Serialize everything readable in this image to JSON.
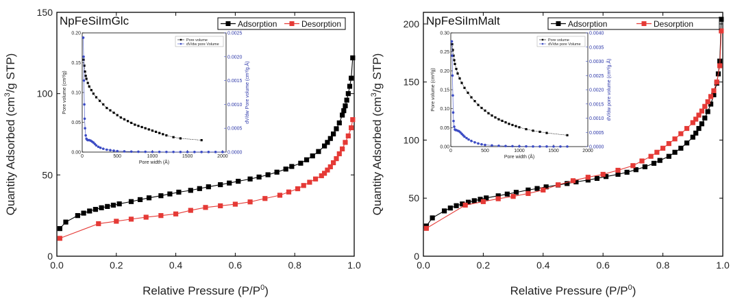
{
  "chart_data": [
    {
      "type": "line",
      "title": "NpFeSiImGlc",
      "xlabel": "Relative Pressure (P/P",
      "xlabel_sup": "0",
      "xlabel_end": ")",
      "ylabel": "Quantity Adsorbed (cm",
      "ylabel_sup": "3",
      "ylabel_end": "/g STP)",
      "xlim": [
        0,
        1.0
      ],
      "ylim": [
        0,
        150
      ],
      "xticks": [
        "0.0",
        "0.2",
        "0.4",
        "0.6",
        "0.8",
        "1.0"
      ],
      "yticks": [
        "0",
        "50",
        "100",
        "150"
      ],
      "legend_position": "top-right",
      "series": [
        {
          "name": "Adsorption",
          "color": "#000000",
          "x": [
            0.01,
            0.03,
            0.07,
            0.09,
            0.11,
            0.13,
            0.15,
            0.17,
            0.19,
            0.21,
            0.25,
            0.28,
            0.31,
            0.35,
            0.38,
            0.41,
            0.45,
            0.48,
            0.51,
            0.55,
            0.58,
            0.61,
            0.65,
            0.68,
            0.71,
            0.74,
            0.77,
            0.79,
            0.82,
            0.84,
            0.86,
            0.88,
            0.9,
            0.91,
            0.92,
            0.93,
            0.94,
            0.95,
            0.96,
            0.965,
            0.97,
            0.975,
            0.98,
            0.985,
            0.99,
            0.995
          ],
          "y": [
            17,
            21,
            25,
            26.5,
            27.8,
            28.8,
            29.8,
            30.6,
            31.4,
            32.2,
            33.6,
            34.8,
            35.9,
            37.2,
            38.3,
            39.4,
            40.5,
            41.6,
            42.7,
            44,
            45,
            46.1,
            47.5,
            48.7,
            50.1,
            51.7,
            53.6,
            55.2,
            57.2,
            59.3,
            61.7,
            64.4,
            67.8,
            70,
            72.4,
            75.2,
            78.4,
            82,
            86.8,
            89.5,
            92.5,
            96,
            100,
            104.5,
            109.5,
            122
          ]
        },
        {
          "name": "Desorption",
          "color": "#e53a36",
          "x": [
            0.01,
            0.14,
            0.2,
            0.25,
            0.3,
            0.35,
            0.4,
            0.45,
            0.5,
            0.55,
            0.6,
            0.65,
            0.7,
            0.75,
            0.78,
            0.81,
            0.83,
            0.85,
            0.87,
            0.89,
            0.9,
            0.91,
            0.92,
            0.93,
            0.94,
            0.95,
            0.96,
            0.97,
            0.98,
            0.99,
            0.995
          ],
          "y": [
            11,
            20,
            21.5,
            22.8,
            24,
            25,
            26,
            28.2,
            30,
            31,
            32,
            33.4,
            35.5,
            37.5,
            39.5,
            41.5,
            43.5,
            45.5,
            47.5,
            49.5,
            51,
            53,
            55,
            57.5,
            60,
            63,
            66,
            70,
            74,
            79,
            84
          ]
        }
      ],
      "inset": {
        "xlabel": "Pore width (Å)",
        "ylabel_left": "Pore volume (cm³/g)",
        "ylabel_right": "dV/dw Pore volume (cm³/g.Å)",
        "xlim": [
          0,
          2050
        ],
        "ylim_left": [
          0,
          0.2
        ],
        "ylim_right": [
          0,
          0.0025
        ],
        "xticks": [
          "0",
          "500",
          "1000",
          "1500",
          "2000"
        ],
        "yticks_left": [
          "0.00",
          "0.05",
          "0.10",
          "0.15",
          "0.20"
        ],
        "yticks_right": [
          "0.0000",
          "0.0005",
          "0.0010",
          "0.0015",
          "0.0020",
          "0.0025"
        ],
        "legend": [
          "Pore volume",
          "dV/dw pore Volume"
        ],
        "series": [
          {
            "name": "Pore volume",
            "axis": "left",
            "x": [
              20,
              30,
              40,
              50,
              60,
              80,
              100,
              130,
              160,
              200,
              250,
              300,
              350,
              400,
              450,
              500,
              550,
              600,
              650,
              700,
              750,
              800,
              850,
              900,
              950,
              1000,
              1050,
              1100,
              1150,
              1200,
              1300,
              1400,
              1700
            ],
            "y": [
              0.155,
              0.145,
              0.135,
              0.128,
              0.123,
              0.116,
              0.11,
              0.104,
              0.098,
              0.092,
              0.086,
              0.08,
              0.074,
              0.07,
              0.066,
              0.062,
              0.058,
              0.055,
              0.052,
              0.049,
              0.046,
              0.044,
              0.042,
              0.04,
              0.038,
              0.036,
              0.034,
              0.032,
              0.03,
              0.028,
              0.025,
              0.023,
              0.02
            ]
          },
          {
            "name": "dV/dw pore Volume",
            "axis": "right",
            "x": [
              15,
              20,
              25,
              30,
              35,
              40,
              50,
              60,
              70,
              80,
              100,
              120,
              140,
              160,
              180,
              200,
              230,
              260,
              300,
              350,
              400,
              450,
              500,
              600,
              700,
              800,
              900,
              1000,
              1100,
              1200,
              1300,
              1400,
              1500,
              1600,
              1700,
              1800,
              1900,
              2000
            ],
            "y": [
              0.0024,
              0.002,
              0.0015,
              0.001,
              0.0007,
              0.0005,
              0.00035,
              0.00028,
              0.00026,
              0.00025,
              0.00025,
              0.00024,
              0.00022,
              0.0002,
              0.00017,
              0.00014,
              0.00011,
              9e-05,
              7e-05,
              5e-05,
              4e-05,
              3e-05,
              2e-05,
              1.5e-05,
              1e-05,
              8e-06,
              6e-06,
              5e-06,
              4e-06,
              3e-06,
              3e-06,
              2e-06,
              2e-06,
              2e-06,
              2e-06,
              2e-06,
              2e-06,
              2e-06
            ]
          }
        ]
      }
    },
    {
      "type": "line",
      "title": "NpFeSiImMalt",
      "xlabel": "Relative Pressure (P/P",
      "xlabel_sup": "0",
      "xlabel_end": ")",
      "ylabel": "Quantity Adsorbed (cm",
      "ylabel_sup": "3",
      "ylabel_end": "/g STP)",
      "xlim": [
        0,
        1.0
      ],
      "ylim": [
        0,
        210
      ],
      "xticks": [
        "0.0",
        "0.2",
        "0.4",
        "0.6",
        "0.8",
        "1.0"
      ],
      "yticks": [
        "0",
        "50",
        "100",
        "150",
        "200"
      ],
      "legend_position": "top-right",
      "series": [
        {
          "name": "Adsorption",
          "color": "#000000",
          "x": [
            0.01,
            0.03,
            0.07,
            0.09,
            0.11,
            0.13,
            0.15,
            0.17,
            0.19,
            0.21,
            0.25,
            0.28,
            0.31,
            0.35,
            0.38,
            0.41,
            0.45,
            0.48,
            0.51,
            0.55,
            0.58,
            0.61,
            0.65,
            0.68,
            0.71,
            0.74,
            0.77,
            0.79,
            0.82,
            0.84,
            0.86,
            0.88,
            0.9,
            0.91,
            0.92,
            0.93,
            0.94,
            0.95,
            0.96,
            0.97,
            0.98,
            0.985,
            0.99,
            0.995
          ],
          "y": [
            26,
            33,
            39,
            41.5,
            43.5,
            45,
            46.5,
            47.8,
            49,
            50.2,
            52,
            53.5,
            55,
            57,
            58.3,
            59.7,
            61.3,
            62.6,
            64,
            65.6,
            67,
            68.6,
            70.5,
            72.3,
            74.5,
            77,
            80,
            82.5,
            86,
            89.5,
            93,
            97.5,
            102.5,
            106,
            110,
            114,
            119,
            124.5,
            131,
            139,
            149,
            157,
            168,
            204
          ]
        },
        {
          "name": "Desorption",
          "color": "#e53a36",
          "x": [
            0.01,
            0.14,
            0.2,
            0.25,
            0.3,
            0.35,
            0.4,
            0.45,
            0.5,
            0.55,
            0.6,
            0.65,
            0.7,
            0.73,
            0.76,
            0.78,
            0.8,
            0.82,
            0.84,
            0.86,
            0.88,
            0.9,
            0.91,
            0.92,
            0.93,
            0.94,
            0.95,
            0.96,
            0.97,
            0.98,
            0.99,
            0.995
          ],
          "y": [
            24,
            44,
            47,
            49.5,
            51.5,
            54,
            57,
            61.5,
            65,
            68,
            70.5,
            74,
            78,
            82,
            86,
            89.5,
            93,
            97,
            101,
            105.5,
            110,
            115,
            118,
            121.5,
            125,
            129,
            133,
            137.5,
            142.5,
            150,
            164,
            194
          ]
        }
      ],
      "inset": {
        "xlabel": "Pore width (Å)",
        "ylabel_left": "Pore volume (cm³/g)",
        "ylabel_right": "dV/dw pore volume (cm³/g.Å)",
        "xlim": [
          0,
          2000
        ],
        "ylim_left": [
          0,
          0.3
        ],
        "ylim_right": [
          0,
          0.004
        ],
        "xticks": [
          "0",
          "500",
          "1000",
          "1500",
          "2000"
        ],
        "yticks_left": [
          "0.00",
          "0.05",
          "0.10",
          "0.15",
          "0.20",
          "0.25",
          "0.30"
        ],
        "yticks_right": [
          "0.0000",
          "0.0005",
          "0.0010",
          "0.0015",
          "0.0020",
          "0.0025",
          "0.0030",
          "0.0035",
          "0.0040"
        ],
        "legend": [
          "Pore volume",
          "dV/dw pore Volume"
        ],
        "series": [
          {
            "name": "Pore volume",
            "axis": "left",
            "x": [
              20,
              30,
              40,
              50,
              60,
              80,
              100,
              130,
              160,
              200,
              250,
              300,
              350,
              400,
              450,
              500,
              550,
              600,
              650,
              700,
              750,
              800,
              850,
              900,
              950,
              1000,
              1100,
              1200,
              1300,
              1400,
              1700
            ],
            "y": [
              0.27,
              0.255,
              0.24,
              0.228,
              0.218,
              0.205,
              0.193,
              0.18,
              0.168,
              0.155,
              0.142,
              0.13,
              0.12,
              0.11,
              0.102,
              0.095,
              0.088,
              0.082,
              0.077,
              0.072,
              0.068,
              0.064,
              0.06,
              0.057,
              0.054,
              0.051,
              0.046,
              0.042,
              0.039,
              0.036,
              0.03
            ]
          },
          {
            "name": "dV/dw pore Volume",
            "axis": "right",
            "x": [
              15,
              20,
              25,
              30,
              35,
              40,
              50,
              60,
              70,
              80,
              100,
              120,
              140,
              160,
              180,
              200,
              230,
              260,
              300,
              350,
              400,
              450,
              500,
              600,
              700,
              800,
              900,
              1000,
              1100,
              1200,
              1300,
              1400,
              1500,
              1600,
              1700
            ],
            "y": [
              0.0037,
              0.0032,
              0.0025,
              0.0018,
              0.0012,
              0.0009,
              0.0007,
              0.0006,
              0.00058,
              0.00058,
              0.00056,
              0.00054,
              0.0005,
              0.00045,
              0.0004,
              0.00035,
              0.0003,
              0.00025,
              0.0002,
              0.00015,
              0.00011,
              8e-05,
              6e-05,
              4e-05,
              3e-05,
              2e-05,
              1.5e-05,
              1e-05,
              8e-06,
              6e-06,
              5e-06,
              4e-06,
              3e-06,
              3e-06,
              3e-06
            ]
          }
        ]
      }
    }
  ]
}
